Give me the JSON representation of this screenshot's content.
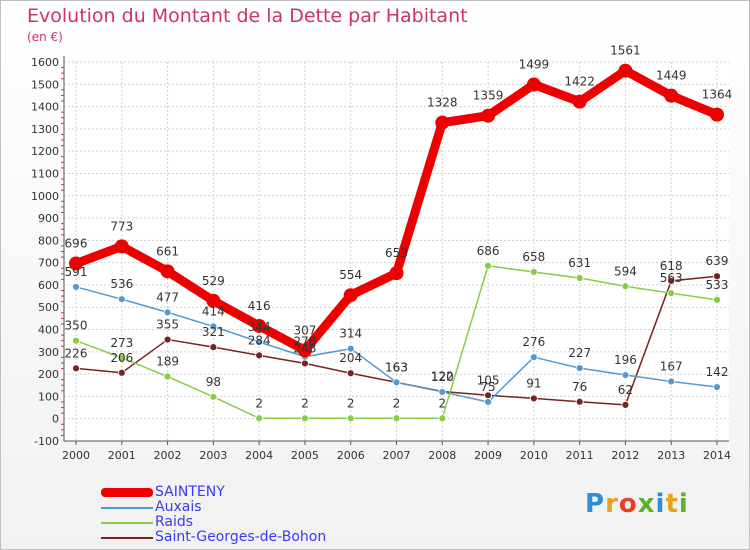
{
  "chart_data": {
    "type": "line",
    "title": "Evolution du Montant de la Dette par Habitant",
    "subtitle": "(en €)",
    "xlabel": "",
    "ylabel": "",
    "categories": [
      "2000",
      "2001",
      "2002",
      "2003",
      "2004",
      "2005",
      "2006",
      "2007",
      "2008",
      "2009",
      "2010",
      "2011",
      "2012",
      "2013",
      "2014"
    ],
    "ylim": [
      -100,
      1600
    ],
    "yticks": [
      -100,
      0,
      100,
      200,
      300,
      400,
      500,
      600,
      700,
      800,
      900,
      1000,
      1100,
      1200,
      1300,
      1400,
      1500,
      1600
    ],
    "grid": true,
    "legend_position": "bottom-left",
    "series": [
      {
        "name": "SAINTENY",
        "color": "#ee0000",
        "width": 9,
        "values": [
          696,
          773,
          661,
          529,
          416,
          307,
          554,
          653,
          1328,
          1359,
          1499,
          1422,
          1561,
          1449,
          1364
        ]
      },
      {
        "name": "Auxais",
        "color": "#5599cc",
        "width": 1.5,
        "values": [
          591,
          536,
          477,
          414,
          344,
          278,
          314,
          163,
          120,
          75,
          276,
          227,
          196,
          167,
          142
        ]
      },
      {
        "name": "Raids",
        "color": "#88cc44",
        "width": 1.5,
        "values": [
          350,
          273,
          189,
          98,
          2,
          2,
          2,
          2,
          2,
          686,
          658,
          631,
          594,
          563,
          533
        ]
      },
      {
        "name": "Saint-Georges-de-Bohon",
        "color": "#772222",
        "width": 1.5,
        "values": [
          226,
          206,
          355,
          321,
          284,
          248,
          204,
          163,
          122,
          105,
          91,
          76,
          62,
          618,
          639
        ]
      }
    ]
  },
  "brand": {
    "name": "Proxiti"
  }
}
